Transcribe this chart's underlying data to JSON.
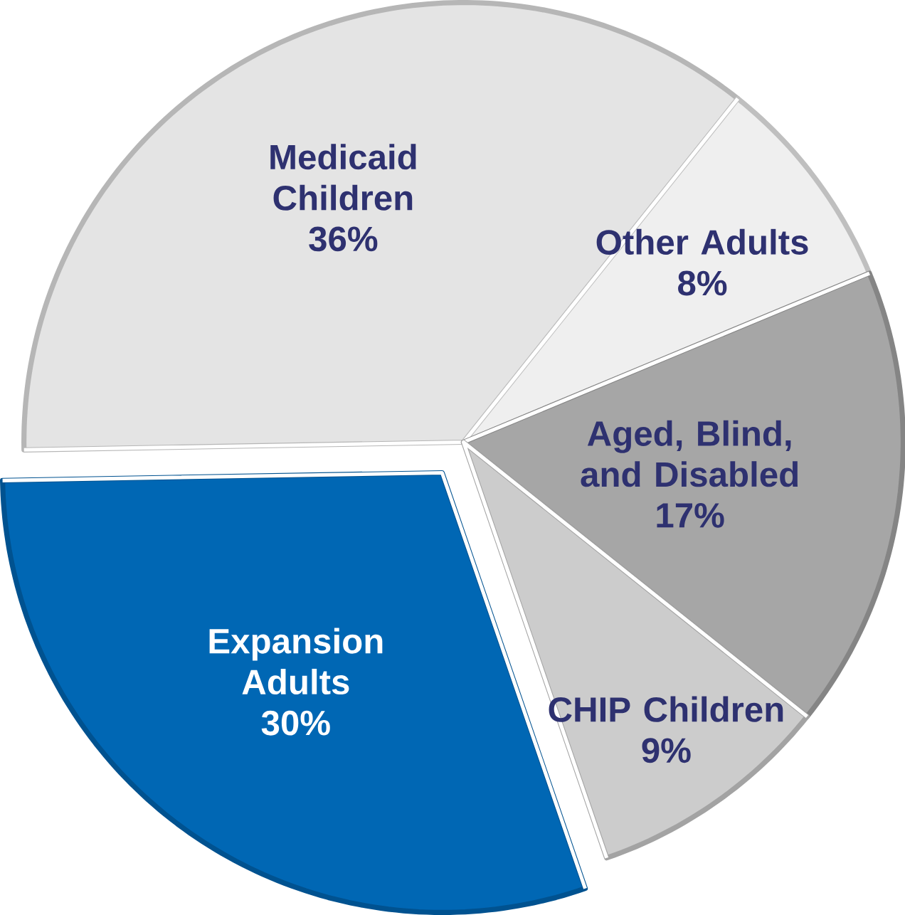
{
  "chart_data": {
    "type": "pie",
    "categories": [
      "Medicaid Children",
      "Other Adults",
      "Aged, Blind, and Disabled",
      "CHIP Children",
      "Expansion Adults"
    ],
    "values": [
      36,
      8,
      17,
      9,
      30
    ],
    "colors": [
      "#e4e4e4",
      "#efefef",
      "#a6a6a6",
      "#cccccc",
      "#0067b4"
    ],
    "value_labels": [
      "36%",
      "8%",
      "17%",
      "9%",
      "30%"
    ]
  }
}
